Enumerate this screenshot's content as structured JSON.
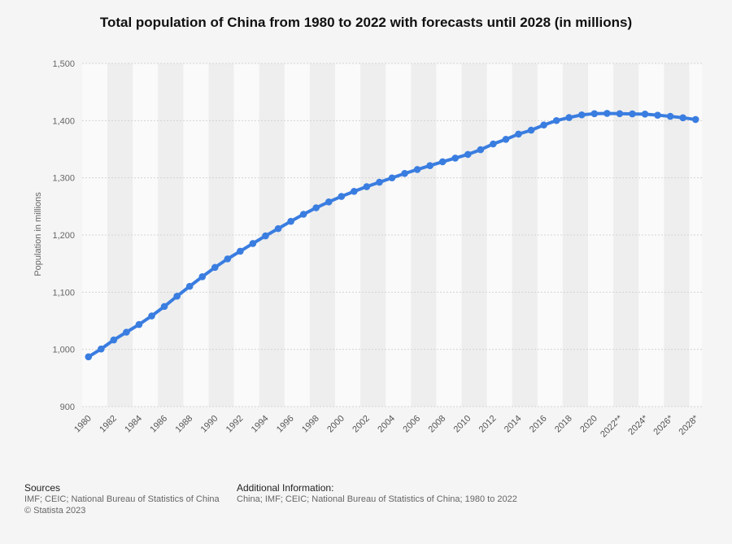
{
  "title": "Total population of China from 1980 to 2022 with forecasts until 2028 (in millions)",
  "footer": {
    "sources_label": "Sources",
    "sources_text": "IMF; CEIC; National Bureau of Statistics of China",
    "copyright": "© Statista 2023",
    "additional_label": "Additional Information:",
    "additional_text": "China; IMF; CEIC; National Bureau of Statistics of China; 1980 to 2022"
  },
  "chart_data": {
    "type": "line",
    "title": "Total population of China from 1980 to 2022 with forecasts until 2028 (in millions)",
    "xlabel": "",
    "ylabel": "Population in millions",
    "ylim": [
      900,
      1500
    ],
    "yticks": [
      900,
      1000,
      1100,
      1200,
      1300,
      1400,
      1500
    ],
    "ytick_labels": [
      "900",
      "1,000",
      "1,100",
      "1,200",
      "1,300",
      "1,400",
      "1,500"
    ],
    "grid": true,
    "color": "#3a7de0",
    "categories": [
      "1980",
      "1981",
      "1982",
      "1983",
      "1984",
      "1985",
      "1986",
      "1987",
      "1988",
      "1989",
      "1990",
      "1991",
      "1992",
      "1993",
      "1994",
      "1995",
      "1996",
      "1997",
      "1998",
      "1999",
      "2000",
      "2001",
      "2002",
      "2003",
      "2004",
      "2005",
      "2006",
      "2007",
      "2008",
      "2009",
      "2010",
      "2011",
      "2012",
      "2013",
      "2014",
      "2015",
      "2016",
      "2017",
      "2018",
      "2019",
      "2020",
      "2021",
      "2022**",
      "2023*",
      "2024*",
      "2025*",
      "2026*",
      "2027*",
      "2028*"
    ],
    "tick_labels": [
      "1980",
      "1982",
      "1984",
      "1986",
      "1988",
      "1990",
      "1992",
      "1994",
      "1996",
      "1998",
      "2000",
      "2002",
      "2004",
      "2006",
      "2008",
      "2010",
      "2012",
      "2014",
      "2016",
      "2018",
      "2020",
      "2022**",
      "2024*",
      "2026*",
      "2028*"
    ],
    "series": [
      {
        "values": [
          987.05,
          1000.72,
          1016.54,
          1030.08,
          1043.57,
          1058.51,
          1075.07,
          1093.0,
          1110.26,
          1127.04,
          1143.33,
          1158.23,
          1171.71,
          1185.17,
          1198.5,
          1211.21,
          1223.89,
          1236.26,
          1247.61,
          1257.86,
          1267.43,
          1276.27,
          1284.53,
          1292.27,
          1299.88,
          1307.56,
          1314.48,
          1321.29,
          1328.02,
          1334.5,
          1340.91,
          1349.16,
          1359.22,
          1367.26,
          1376.46,
          1383.26,
          1392.32,
          1400.11,
          1405.41,
          1410.08,
          1412.12,
          1412.6,
          1412.12,
          1411.75,
          1411.4,
          1409.5,
          1407.5,
          1405.0,
          1402.0
        ]
      }
    ]
  }
}
